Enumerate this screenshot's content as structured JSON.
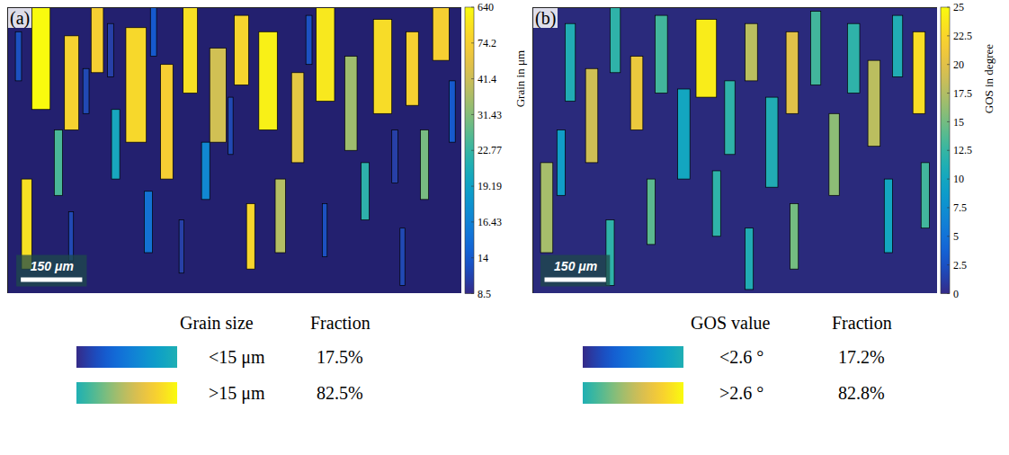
{
  "chart_data": [
    {
      "type": "grain_map",
      "title": "(a)",
      "xlim": [
        0,
        1110
      ],
      "ylim": [
        0,
        700
      ],
      "tick_labels": false,
      "colorbar": {
        "title": "Grain in μm",
        "range": [
          8.5,
          640
        ],
        "ticks": [
          8.5,
          14,
          16.43,
          19.19,
          22.77,
          31.43,
          41.4,
          74.2,
          640
        ]
      },
      "scale_bar": {
        "value": 150,
        "label": "150 μm"
      },
      "grains": [
        {
          "x1": 60,
          "x2": 105,
          "y1": 0,
          "y2": 250,
          "value": 640
        },
        {
          "x1": 140,
          "x2": 175,
          "y1": 70,
          "y2": 300,
          "value": 120
        },
        {
          "x1": 205,
          "x2": 235,
          "y1": 0,
          "y2": 160,
          "value": 90
        },
        {
          "x1": 290,
          "x2": 340,
          "y1": 50,
          "y2": 330,
          "value": 200
        },
        {
          "x1": 375,
          "x2": 405,
          "y1": 140,
          "y2": 420,
          "value": 80
        },
        {
          "x1": 430,
          "x2": 465,
          "y1": 0,
          "y2": 210,
          "value": 300
        },
        {
          "x1": 495,
          "x2": 535,
          "y1": 100,
          "y2": 330,
          "value": 45
        },
        {
          "x1": 555,
          "x2": 590,
          "y1": 20,
          "y2": 190,
          "value": 150
        },
        {
          "x1": 615,
          "x2": 660,
          "y1": 60,
          "y2": 300,
          "value": 500
        },
        {
          "x1": 695,
          "x2": 725,
          "y1": 160,
          "y2": 380,
          "value": 60
        },
        {
          "x1": 755,
          "x2": 800,
          "y1": 0,
          "y2": 230,
          "value": 400
        },
        {
          "x1": 825,
          "x2": 855,
          "y1": 120,
          "y2": 350,
          "value": 35
        },
        {
          "x1": 895,
          "x2": 940,
          "y1": 30,
          "y2": 260,
          "value": 250
        },
        {
          "x1": 975,
          "x2": 1005,
          "y1": 60,
          "y2": 240,
          "value": 110
        },
        {
          "x1": 1040,
          "x2": 1080,
          "y1": 0,
          "y2": 130,
          "value": 90
        },
        {
          "x1": 35,
          "x2": 60,
          "y1": 420,
          "y2": 640,
          "value": 300
        },
        {
          "x1": 115,
          "x2": 135,
          "y1": 300,
          "y2": 460,
          "value": 25
        },
        {
          "x1": 255,
          "x2": 275,
          "y1": 250,
          "y2": 420,
          "value": 20
        },
        {
          "x1": 475,
          "x2": 495,
          "y1": 330,
          "y2": 470,
          "value": 17
        },
        {
          "x1": 655,
          "x2": 680,
          "y1": 420,
          "y2": 600,
          "value": 38
        },
        {
          "x1": 865,
          "x2": 885,
          "y1": 380,
          "y2": 520,
          "value": 22
        },
        {
          "x1": 1010,
          "x2": 1030,
          "y1": 300,
          "y2": 470,
          "value": 30
        },
        {
          "x1": 585,
          "x2": 605,
          "y1": 480,
          "y2": 640,
          "value": 160
        },
        {
          "x1": 335,
          "x2": 355,
          "y1": 450,
          "y2": 600,
          "value": 15.5
        },
        {
          "x1": 185,
          "x2": 200,
          "y1": 150,
          "y2": 260,
          "value": 12
        },
        {
          "x1": 20,
          "x2": 35,
          "y1": 60,
          "y2": 180,
          "value": 13
        },
        {
          "x1": 245,
          "x2": 260,
          "y1": 40,
          "y2": 170,
          "value": 11
        },
        {
          "x1": 350,
          "x2": 365,
          "y1": 0,
          "y2": 120,
          "value": 14
        },
        {
          "x1": 540,
          "x2": 552,
          "y1": 220,
          "y2": 360,
          "value": 12
        },
        {
          "x1": 730,
          "x2": 745,
          "y1": 20,
          "y2": 140,
          "value": 13
        },
        {
          "x1": 940,
          "x2": 955,
          "y1": 300,
          "y2": 430,
          "value": 11
        },
        {
          "x1": 1080,
          "x2": 1095,
          "y1": 180,
          "y2": 330,
          "value": 14
        },
        {
          "x1": 150,
          "x2": 162,
          "y1": 500,
          "y2": 620,
          "value": 12
        },
        {
          "x1": 420,
          "x2": 432,
          "y1": 520,
          "y2": 650,
          "value": 11
        },
        {
          "x1": 770,
          "x2": 782,
          "y1": 480,
          "y2": 610,
          "value": 13
        },
        {
          "x1": 960,
          "x2": 972,
          "y1": 540,
          "y2": 680,
          "value": 12
        }
      ],
      "table": {
        "header": [
          "Grain size",
          "Fraction"
        ],
        "rows": [
          {
            "label": "<15 μm",
            "fraction": "17.5%"
          },
          {
            "label": ">15 μm",
            "fraction": "82.5%"
          }
        ]
      }
    },
    {
      "type": "grain_map",
      "title": "(b)",
      "xlim": [
        0,
        990
      ],
      "ylim": [
        0,
        700
      ],
      "tick_labels": false,
      "colorbar": {
        "title": "GOS in degree",
        "range": [
          0,
          25
        ],
        "ticks": [
          0,
          2.5,
          5,
          7.5,
          10,
          12.5,
          15,
          17.5,
          20,
          22.5,
          25
        ]
      },
      "scale_bar": {
        "value": 150,
        "label": "150 μm"
      },
      "grains": [
        {
          "x1": 20,
          "x2": 50,
          "y1": 380,
          "y2": 600,
          "value": 17
        },
        {
          "x1": 80,
          "x2": 105,
          "y1": 40,
          "y2": 230,
          "value": 11
        },
        {
          "x1": 130,
          "x2": 160,
          "y1": 150,
          "y2": 380,
          "value": 19
        },
        {
          "x1": 190,
          "x2": 215,
          "y1": 0,
          "y2": 160,
          "value": 12
        },
        {
          "x1": 240,
          "x2": 270,
          "y1": 120,
          "y2": 300,
          "value": 21
        },
        {
          "x1": 300,
          "x2": 330,
          "y1": 20,
          "y2": 210,
          "value": 13
        },
        {
          "x1": 355,
          "x2": 385,
          "y1": 200,
          "y2": 420,
          "value": 10
        },
        {
          "x1": 400,
          "x2": 450,
          "y1": 30,
          "y2": 220,
          "value": 24
        },
        {
          "x1": 470,
          "x2": 495,
          "y1": 180,
          "y2": 360,
          "value": 12
        },
        {
          "x1": 520,
          "x2": 550,
          "y1": 40,
          "y2": 180,
          "value": 18
        },
        {
          "x1": 570,
          "x2": 600,
          "y1": 220,
          "y2": 440,
          "value": 11
        },
        {
          "x1": 620,
          "x2": 650,
          "y1": 60,
          "y2": 260,
          "value": 20
        },
        {
          "x1": 680,
          "x2": 705,
          "y1": 10,
          "y2": 190,
          "value": 13
        },
        {
          "x1": 725,
          "x2": 750,
          "y1": 260,
          "y2": 460,
          "value": 16
        },
        {
          "x1": 770,
          "x2": 800,
          "y1": 40,
          "y2": 210,
          "value": 12
        },
        {
          "x1": 820,
          "x2": 850,
          "y1": 130,
          "y2": 340,
          "value": 18
        },
        {
          "x1": 880,
          "x2": 905,
          "y1": 20,
          "y2": 170,
          "value": 11
        },
        {
          "x1": 930,
          "x2": 960,
          "y1": 60,
          "y2": 260,
          "value": 23
        },
        {
          "x1": 60,
          "x2": 80,
          "y1": 300,
          "y2": 460,
          "value": 9
        },
        {
          "x1": 280,
          "x2": 300,
          "y1": 420,
          "y2": 580,
          "value": 14
        },
        {
          "x1": 440,
          "x2": 460,
          "y1": 400,
          "y2": 560,
          "value": 12
        },
        {
          "x1": 630,
          "x2": 650,
          "y1": 480,
          "y2": 640,
          "value": 15
        },
        {
          "x1": 860,
          "x2": 880,
          "y1": 420,
          "y2": 600,
          "value": 10
        },
        {
          "x1": 180,
          "x2": 200,
          "y1": 520,
          "y2": 680,
          "value": 12
        },
        {
          "x1": 520,
          "x2": 540,
          "y1": 540,
          "y2": 690,
          "value": 11
        },
        {
          "x1": 950,
          "x2": 970,
          "y1": 380,
          "y2": 540,
          "value": 13
        }
      ],
      "table": {
        "header": [
          "GOS value",
          "Fraction"
        ],
        "rows": [
          {
            "label": "<2.6 °",
            "fraction": "17.2%"
          },
          {
            "label": ">2.6 °",
            "fraction": "82.8%"
          }
        ]
      }
    }
  ]
}
